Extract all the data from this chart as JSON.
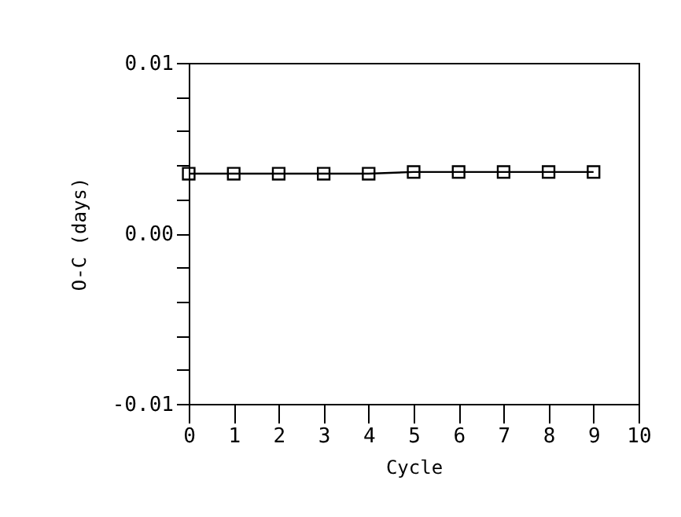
{
  "chart_data": {
    "type": "line",
    "xlabel": "Cycle",
    "ylabel": "O-C (days)",
    "x": [
      0,
      1,
      2,
      3,
      4,
      5,
      6,
      7,
      8,
      9
    ],
    "series": [
      {
        "color": "#000000",
        "values": [
          0.0035,
          0.0035,
          0.0035,
          0.0035,
          0.0035,
          0.0036,
          0.0036,
          0.0036,
          0.0036,
          0.0036
        ]
      }
    ],
    "xlim": [
      0,
      10
    ],
    "xticks": [
      0,
      1,
      2,
      3,
      4,
      5,
      6,
      7,
      8,
      9,
      10
    ],
    "ylim": [
      -0.01,
      0.01
    ],
    "yticks": [
      {
        "value": -0.01,
        "label": "-0.01"
      },
      {
        "value": -0.008,
        "label": null
      },
      {
        "value": -0.006,
        "label": null
      },
      {
        "value": -0.004,
        "label": null
      },
      {
        "value": -0.002,
        "label": null
      },
      {
        "value": 0,
        "label": "0.00"
      },
      {
        "value": 0.002,
        "label": null
      },
      {
        "value": 0.004,
        "label": null
      },
      {
        "value": 0.006,
        "label": null
      },
      {
        "value": 0.008,
        "label": null
      },
      {
        "value": 0.01,
        "label": "0.01"
      }
    ],
    "grid": false,
    "marker": "square",
    "line_style": "solid"
  }
}
